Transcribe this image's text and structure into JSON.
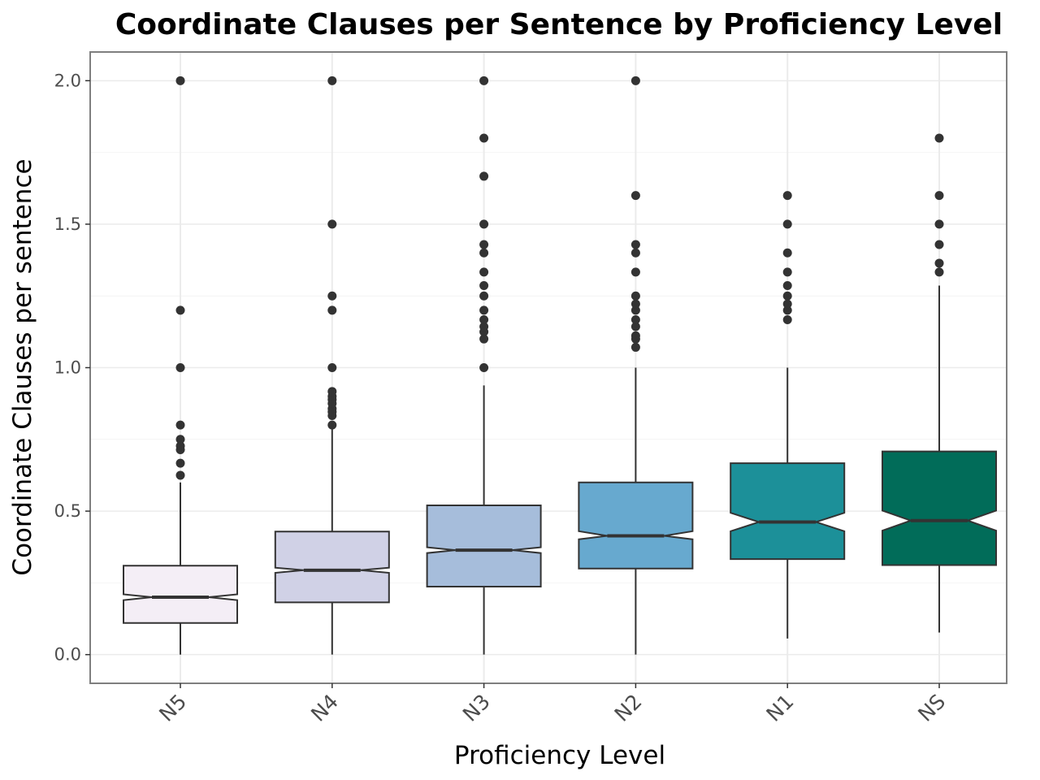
{
  "chart_data": {
    "type": "boxplot",
    "title": "Coordinate Clauses per Sentence by Proficiency Level",
    "xlabel": "Proficiency Level",
    "ylabel": "Coordinate Clauses per sentence",
    "ylim": [
      -0.1,
      2.1
    ],
    "y_ticks": [
      0.0,
      0.5,
      1.0,
      1.5,
      2.0
    ],
    "y_tick_labels": [
      "0.0",
      "0.5",
      "1.0",
      "1.5",
      "2.0"
    ],
    "grid": true,
    "notched": true,
    "categories": [
      "N5",
      "N4",
      "N3",
      "N2",
      "N1",
      "NS"
    ],
    "boxes": [
      {
        "category": "N5",
        "color": "#f4eef6",
        "whisker_low": 0.0,
        "q1": 0.11,
        "median": 0.2,
        "q3": 0.31,
        "whisker_high": 0.6,
        "notch_low": 0.19,
        "notch_high": 0.21,
        "outliers": [
          0.625,
          0.667,
          0.714,
          0.727,
          0.75,
          0.8,
          1.0,
          1.2,
          2.0
        ]
      },
      {
        "category": "N4",
        "color": "#d0d1e6",
        "whisker_low": 0.0,
        "q1": 0.182,
        "median": 0.294,
        "q3": 0.429,
        "whisker_high": 0.8,
        "notch_low": 0.285,
        "notch_high": 0.303,
        "outliers": [
          0.8,
          0.833,
          0.846,
          0.857,
          0.875,
          0.889,
          0.9,
          0.917,
          1.0,
          1.2,
          1.25,
          1.5,
          2.0
        ]
      },
      {
        "category": "N3",
        "color": "#a6bddb",
        "whisker_low": 0.0,
        "q1": 0.237,
        "median": 0.364,
        "q3": 0.52,
        "whisker_high": 0.938,
        "notch_low": 0.354,
        "notch_high": 0.374,
        "outliers": [
          1.0,
          1.1,
          1.125,
          1.143,
          1.167,
          1.2,
          1.25,
          1.286,
          1.333,
          1.4,
          1.429,
          1.5,
          1.667,
          1.8,
          2.0
        ]
      },
      {
        "category": "N2",
        "color": "#67a9cf",
        "whisker_low": 0.0,
        "q1": 0.3,
        "median": 0.414,
        "q3": 0.6,
        "whisker_high": 1.0,
        "notch_low": 0.402,
        "notch_high": 0.43,
        "outliers": [
          1.071,
          1.1,
          1.111,
          1.143,
          1.167,
          1.2,
          1.222,
          1.25,
          1.333,
          1.4,
          1.429,
          1.6,
          2.0
        ]
      },
      {
        "category": "N1",
        "color": "#1c9099",
        "whisker_low": 0.056,
        "q1": 0.333,
        "median": 0.462,
        "q3": 0.667,
        "whisker_high": 1.0,
        "notch_low": 0.43,
        "notch_high": 0.494,
        "outliers": [
          1.167,
          1.2,
          1.222,
          1.25,
          1.286,
          1.333,
          1.4,
          1.5,
          1.6
        ]
      },
      {
        "category": "NS",
        "color": "#016c59",
        "whisker_low": 0.077,
        "q1": 0.312,
        "median": 0.467,
        "q3": 0.708,
        "whisker_high": 1.286,
        "notch_low": 0.432,
        "notch_high": 0.502,
        "outliers": [
          1.333,
          1.364,
          1.429,
          1.5,
          1.6,
          1.8
        ]
      }
    ],
    "style": {
      "panel_border": "#7f7f7f",
      "major_grid": "#ebebeb",
      "minor_grid": "#f4f4f4",
      "box_outline": "#333333",
      "point_color": "#333333"
    }
  }
}
